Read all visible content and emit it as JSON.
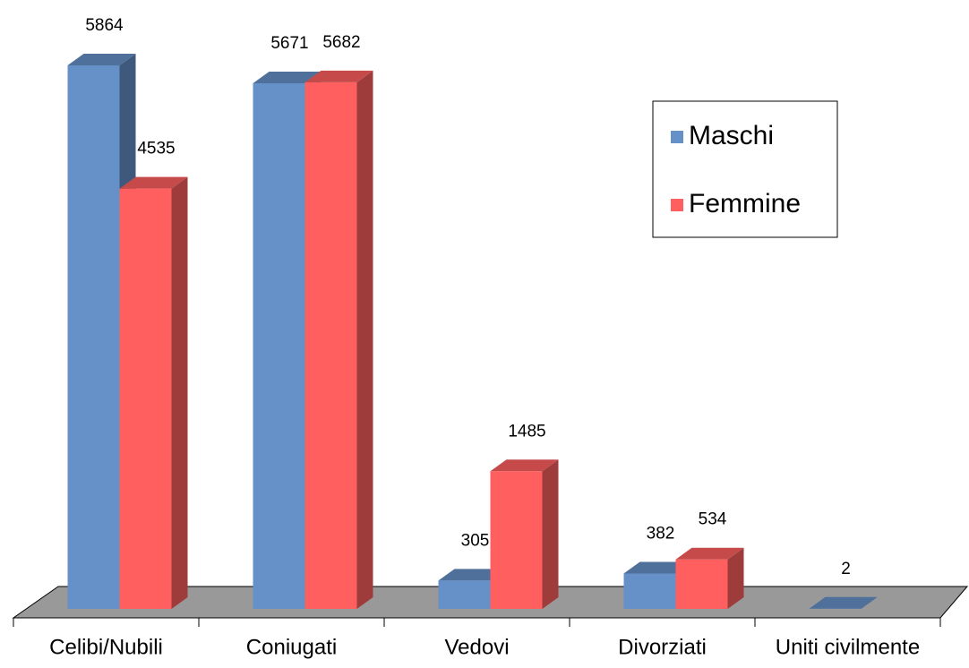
{
  "chart_data": {
    "type": "bar3d",
    "categories": [
      "Celibi/Nubili",
      "Coniugati",
      "Vedovi",
      "Divorziati",
      "Uniti civilmente"
    ],
    "series": [
      {
        "name": "Maschi",
        "color": "#6690c8",
        "values": [
          5864,
          5671,
          305,
          382,
          2
        ]
      },
      {
        "name": "Femmine",
        "color": "#ff5f5f",
        "values": [
          4535,
          5682,
          1485,
          534,
          null
        ]
      }
    ],
    "legend": "right"
  }
}
